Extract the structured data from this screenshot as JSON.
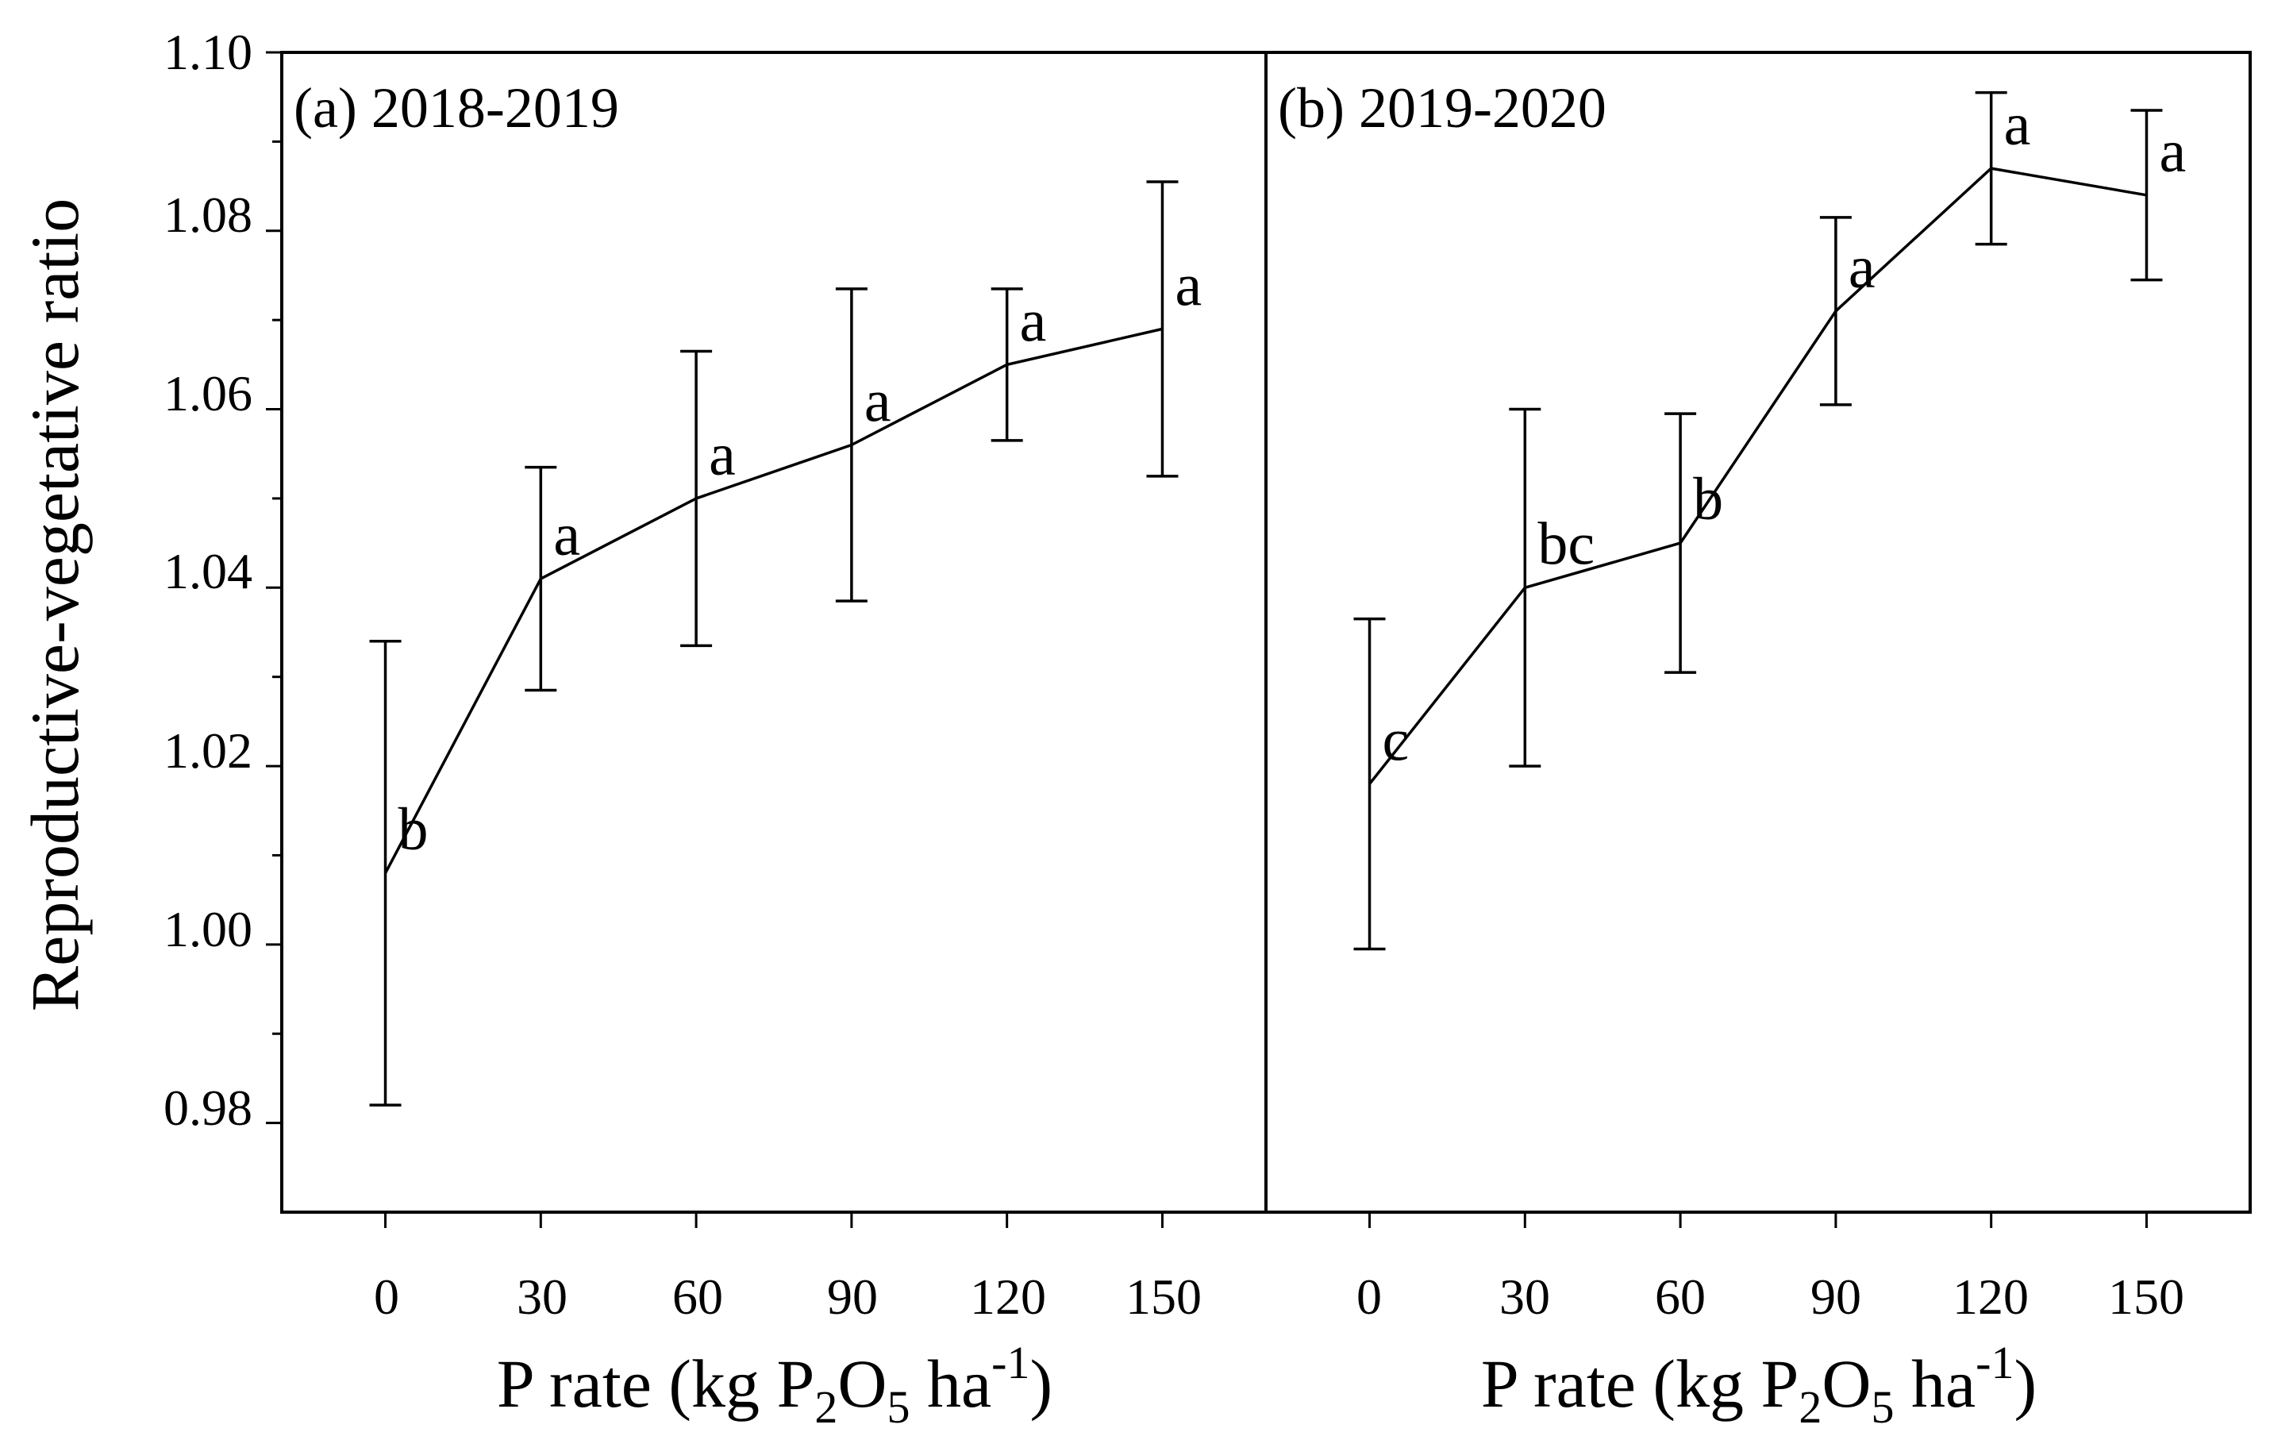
{
  "figure": {
    "ylabel": "Reproductive-vegetative ratio",
    "y_ticks": [
      "0.98",
      "1.00",
      "1.02",
      "1.04",
      "1.06",
      "1.08",
      "1.10"
    ],
    "x_ticks": [
      "0",
      "30",
      "60",
      "90",
      "120",
      "150"
    ],
    "xlabel": {
      "prefix": "P rate (kg P",
      "sub1": "2",
      "mid": "O",
      "sub2": "5",
      "suffix": " ha",
      "sup": "-1",
      "close": ")"
    }
  },
  "chart_data": [
    {
      "type": "line",
      "title": "(a) 2018-2019",
      "xlabel": "P rate (kg P2O5 ha-1)",
      "ylabel": "Reproductive-vegetative ratio",
      "x": [
        0,
        30,
        60,
        90,
        120,
        150
      ],
      "values": [
        1.008,
        1.041,
        1.05,
        1.056,
        1.065,
        1.069
      ],
      "errors": [
        0.026,
        0.0125,
        0.0165,
        0.0175,
        0.0085,
        0.0165
      ],
      "labels": [
        "b",
        "a",
        "a",
        "a",
        "a",
        "a"
      ],
      "ylim": [
        0.97,
        1.1
      ],
      "xlim": [
        -20,
        170
      ],
      "color": "#000000"
    },
    {
      "type": "line",
      "title": "(b) 2019-2020",
      "xlabel": "P rate (kg P2O5 ha-1)",
      "ylabel": "Reproductive-vegetative ratio",
      "x": [
        0,
        30,
        60,
        90,
        120,
        150
      ],
      "values": [
        1.018,
        1.04,
        1.045,
        1.071,
        1.087,
        1.084
      ],
      "errors": [
        0.0185,
        0.02,
        0.0145,
        0.0105,
        0.0085,
        0.0095
      ],
      "labels": [
        "c",
        "bc",
        "b",
        "a",
        "a",
        "a"
      ],
      "ylim": [
        0.97,
        1.1
      ],
      "xlim": [
        -20,
        170
      ],
      "color": "#000000"
    }
  ]
}
